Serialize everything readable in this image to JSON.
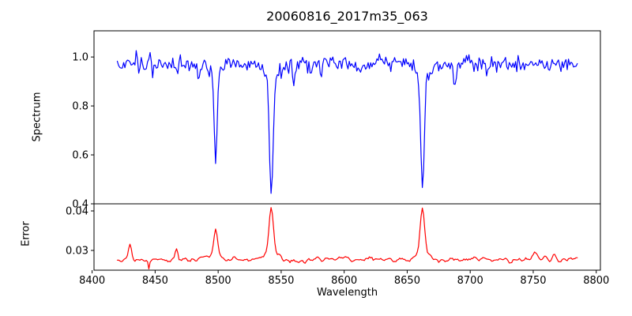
{
  "figure": {
    "title": "20060816_2017m35_063",
    "background_color": "#ffffff",
    "axis_color": "#000000",
    "tick_label_color": "#000000"
  },
  "chart_data": [
    {
      "panel": "spectrum",
      "type": "line",
      "title": "20060816_2017m35_063",
      "ylabel": "Spectrum",
      "line_color": "#0000ff",
      "grid": false,
      "legend": "none",
      "xlim": [
        8401.5,
        8803.3
      ],
      "ylim": [
        0.4,
        1.107
      ],
      "yticks": [
        {
          "value": 0.4,
          "label": "0.4"
        },
        {
          "value": 0.6,
          "label": "0.6"
        },
        {
          "value": 0.8,
          "label": "0.8"
        },
        {
          "value": 1.0,
          "label": "1.0"
        }
      ],
      "x_start": 8420.0,
      "x_end": 8785.5,
      "x_step": 1.0,
      "continuum": 0.972,
      "noise_sigma": 0.016,
      "seed": 1337,
      "absorption_features": [
        {
          "center": 8498.0,
          "depth": 0.36,
          "sigma": 1.1
        },
        {
          "center": 8498.0,
          "depth": 0.05,
          "sigma": 4.0
        },
        {
          "center": 8542.1,
          "depth": 0.475,
          "sigma": 1.4
        },
        {
          "center": 8542.1,
          "depth": 0.065,
          "sigma": 5.0
        },
        {
          "center": 8662.1,
          "depth": 0.45,
          "sigma": 1.35
        },
        {
          "center": 8662.1,
          "depth": 0.06,
          "sigma": 5.0
        },
        {
          "center": 8448.0,
          "depth": 0.045,
          "sigma": 0.8
        },
        {
          "center": 8467.0,
          "depth": 0.03,
          "sigma": 0.7
        },
        {
          "center": 8485.0,
          "depth": 0.065,
          "sigma": 0.9
        },
        {
          "center": 8560.0,
          "depth": 0.06,
          "sigma": 0.9
        },
        {
          "center": 8582.0,
          "depth": 0.05,
          "sigma": 0.8
        },
        {
          "center": 8611.0,
          "depth": 0.045,
          "sigma": 0.8
        },
        {
          "center": 8688.0,
          "depth": 0.09,
          "sigma": 1.0
        },
        {
          "center": 8713.0,
          "depth": 0.045,
          "sigma": 0.8
        },
        {
          "center": 8736.0,
          "depth": 0.04,
          "sigma": 0.8
        },
        {
          "center": 8763.0,
          "depth": 0.035,
          "sigma": 0.8
        },
        {
          "center": 8435.0,
          "depth": -0.055,
          "sigma": 0.55
        },
        {
          "center": 8446.0,
          "depth": -0.05,
          "sigma": 0.5
        }
      ],
      "notable_values": {
        "continuum_level": 0.972,
        "line_minima": [
          {
            "wavelength": 8498,
            "flux": 0.56
          },
          {
            "wavelength": 8542,
            "flux": 0.43
          },
          {
            "wavelength": 8662,
            "flux": 0.46
          }
        ]
      }
    },
    {
      "panel": "error",
      "type": "line",
      "xlabel": "Wavelength",
      "ylabel": "Error",
      "line_color": "#ff0000",
      "grid": false,
      "legend": "none",
      "xlim": [
        8401.5,
        8803.3
      ],
      "ylim": [
        0.025,
        0.0418
      ],
      "yticks": [
        {
          "value": 0.03,
          "label": "0.03"
        },
        {
          "value": 0.04,
          "label": "0.04"
        }
      ],
      "xticks": [
        {
          "value": 8400,
          "label": "8400"
        },
        {
          "value": 8450,
          "label": "8450"
        },
        {
          "value": 8500,
          "label": "8500"
        },
        {
          "value": 8550,
          "label": "8550"
        },
        {
          "value": 8600,
          "label": "8600"
        },
        {
          "value": 8650,
          "label": "8650"
        },
        {
          "value": 8700,
          "label": "8700"
        },
        {
          "value": 8750,
          "label": "8750"
        },
        {
          "value": 8800,
          "label": "8800"
        }
      ],
      "x_start": 8420.0,
      "x_end": 8785.5,
      "x_step": 1.0,
      "baseline": 0.0277,
      "noise_sigma": 0.00055,
      "noise_smooth_window": 3,
      "seed": 4242,
      "peaks": [
        {
          "center": 8430.0,
          "amplitude": 0.0036,
          "sigma": 1.2
        },
        {
          "center": 8445.0,
          "amplitude": -0.0022,
          "sigma": 0.6
        },
        {
          "center": 8467.0,
          "amplitude": 0.0034,
          "sigma": 1.0
        },
        {
          "center": 8498.0,
          "amplitude": 0.0066,
          "sigma": 1.4
        },
        {
          "center": 8498.0,
          "amplitude": 0.0012,
          "sigma": 4.5
        },
        {
          "center": 8542.1,
          "amplitude": 0.0112,
          "sigma": 1.7
        },
        {
          "center": 8542.1,
          "amplitude": 0.0022,
          "sigma": 5.0
        },
        {
          "center": 8662.1,
          "amplitude": 0.0104,
          "sigma": 1.7
        },
        {
          "center": 8662.1,
          "amplitude": 0.0022,
          "sigma": 5.0
        },
        {
          "center": 8752.0,
          "amplitude": 0.0012,
          "sigma": 2.0
        },
        {
          "center": 8767.0,
          "amplitude": 0.0013,
          "sigma": 1.5
        }
      ],
      "notable_values": {
        "baseline_level": 0.0277,
        "peak_maxima": [
          {
            "wavelength": 8498,
            "error": 0.035
          },
          {
            "wavelength": 8542,
            "error": 0.041
          },
          {
            "wavelength": 8662,
            "error": 0.04
          }
        ]
      }
    }
  ]
}
